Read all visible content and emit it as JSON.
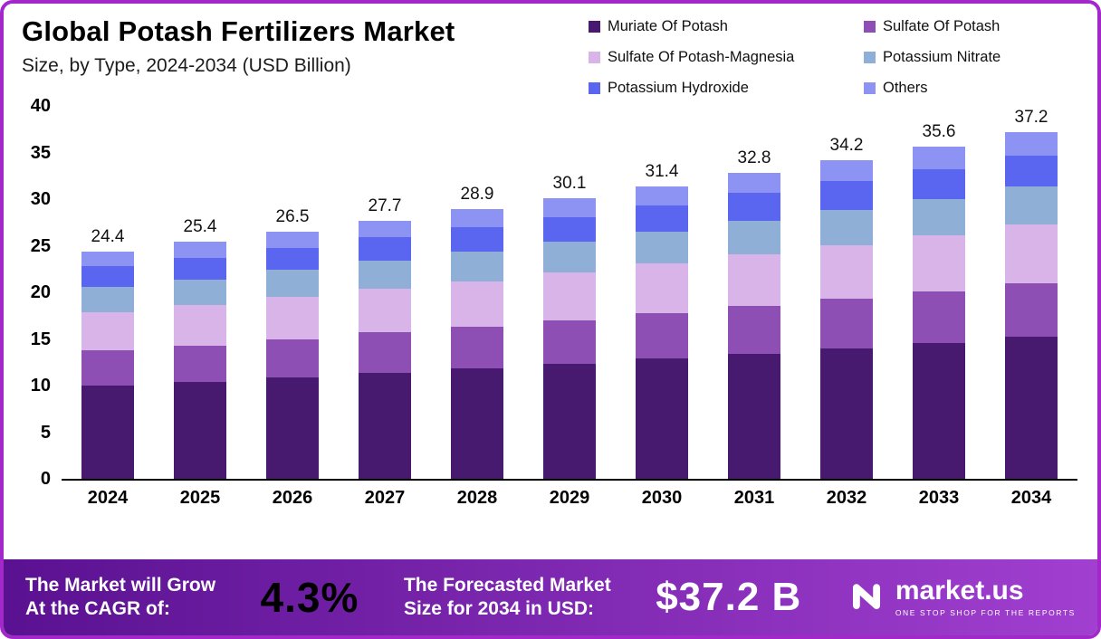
{
  "header": {
    "title": "Global Potash Fertilizers Market",
    "subtitle": "Size, by Type, 2024-2034 (USD Billion)"
  },
  "chart_data": {
    "type": "bar",
    "stacked": true,
    "title": "Global Potash Fertilizers Market Size, by Type, 2024-2034 (USD Billion)",
    "categories": [
      "2024",
      "2025",
      "2026",
      "2027",
      "2028",
      "2029",
      "2030",
      "2031",
      "2032",
      "2033",
      "2034"
    ],
    "series": [
      {
        "name": "Muriate Of Potash",
        "color": "#471a70",
        "values": [
          10.0,
          10.4,
          10.9,
          11.4,
          11.8,
          12.3,
          12.9,
          13.4,
          14.0,
          14.6,
          15.2
        ]
      },
      {
        "name": "Sulfate Of Potash",
        "color": "#8e4fb5",
        "values": [
          3.8,
          3.9,
          4.1,
          4.3,
          4.5,
          4.7,
          4.9,
          5.1,
          5.3,
          5.5,
          5.8
        ]
      },
      {
        "name": "Sulfate Of Potash-Magnesia",
        "color": "#d8b4e8",
        "values": [
          4.1,
          4.3,
          4.5,
          4.7,
          4.9,
          5.1,
          5.3,
          5.6,
          5.8,
          6.0,
          6.3
        ]
      },
      {
        "name": "Potassium Nitrate",
        "color": "#8fafd6",
        "values": [
          2.7,
          2.8,
          2.9,
          3.0,
          3.2,
          3.3,
          3.4,
          3.6,
          3.7,
          3.9,
          4.1
        ]
      },
      {
        "name": "Potassium Hydroxide",
        "color": "#5a66f0",
        "values": [
          2.2,
          2.3,
          2.4,
          2.5,
          2.6,
          2.7,
          2.8,
          3.0,
          3.1,
          3.2,
          3.3
        ]
      },
      {
        "name": "Others",
        "color": "#8d93f2",
        "values": [
          1.6,
          1.7,
          1.7,
          1.8,
          1.9,
          2.0,
          2.1,
          2.1,
          2.3,
          2.4,
          2.5
        ]
      }
    ],
    "totals": [
      24.4,
      25.4,
      26.5,
      27.7,
      28.9,
      30.1,
      31.4,
      32.8,
      34.2,
      35.6,
      37.2
    ],
    "ylim": [
      0,
      40
    ],
    "yticks": [
      0,
      5,
      10,
      15,
      20,
      25,
      30,
      35,
      40
    ],
    "grid": false,
    "legend_position": "top-right"
  },
  "banner": {
    "cagr_label_line1": "The Market will Grow",
    "cagr_label_line2": "At the CAGR of:",
    "cagr_value": "4.3%",
    "forecast_label_line1": "The Forecasted Market",
    "forecast_label_line2": "Size for 2034 in USD:",
    "forecast_value": "$37.2 B",
    "brand_name": "market.us",
    "brand_tagline": "ONE STOP SHOP FOR THE REPORTS"
  },
  "colors": {
    "frame_border": "#a328c9",
    "banner_gradient_start": "#5a1191",
    "banner_gradient_end": "#a13fd0"
  }
}
